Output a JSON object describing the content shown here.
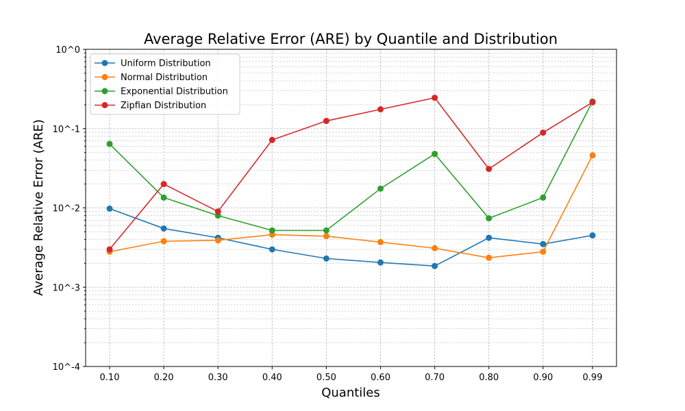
{
  "chart_data": {
    "type": "line",
    "title": "Average Relative Error (ARE) by Quantile and Distribution",
    "xlabel": "Quantiles",
    "ylabel": "Average Relative Error (ARE)",
    "y_scale": "log",
    "ylim": [
      0.0001,
      1
    ],
    "y_ticks": [
      0.0001,
      0.001,
      0.01,
      0.1,
      1
    ],
    "y_tick_labels": [
      "10^-4",
      "10^-3",
      "10^-2",
      "10^-1",
      "10^0"
    ],
    "grid": true,
    "legend_position": "top-left",
    "categories": [
      "0.10",
      "0.20",
      "0.30",
      "0.40",
      "0.50",
      "0.60",
      "0.70",
      "0.80",
      "0.90",
      "0.99"
    ],
    "x": [
      0.1,
      0.2,
      0.3,
      0.4,
      0.5,
      0.6,
      0.7,
      0.8,
      0.9,
      0.99
    ],
    "series": [
      {
        "name": "Uniform Distribution",
        "color": "#1f77b4",
        "marker": "circle",
        "values": [
          0.0098,
          0.0055,
          0.0042,
          0.003,
          0.0023,
          0.00205,
          0.00185,
          0.0042,
          0.0035,
          0.0045
        ]
      },
      {
        "name": "Normal Distribution",
        "color": "#ff7f0e",
        "marker": "circle",
        "values": [
          0.0028,
          0.0038,
          0.0039,
          0.0046,
          0.0044,
          0.0037,
          0.0031,
          0.00235,
          0.0028,
          0.046
        ]
      },
      {
        "name": "Exponential Distribution",
        "color": "#2ca02c",
        "marker": "circle",
        "values": [
          0.064,
          0.0135,
          0.008,
          0.0052,
          0.0052,
          0.0175,
          0.048,
          0.0074,
          0.0135,
          0.22
        ]
      },
      {
        "name": "Zipfian Distribution",
        "color": "#d62728",
        "marker": "circle",
        "values": [
          0.003,
          0.02,
          0.009,
          0.072,
          0.125,
          0.175,
          0.245,
          0.031,
          0.089,
          0.215
        ]
      }
    ]
  }
}
